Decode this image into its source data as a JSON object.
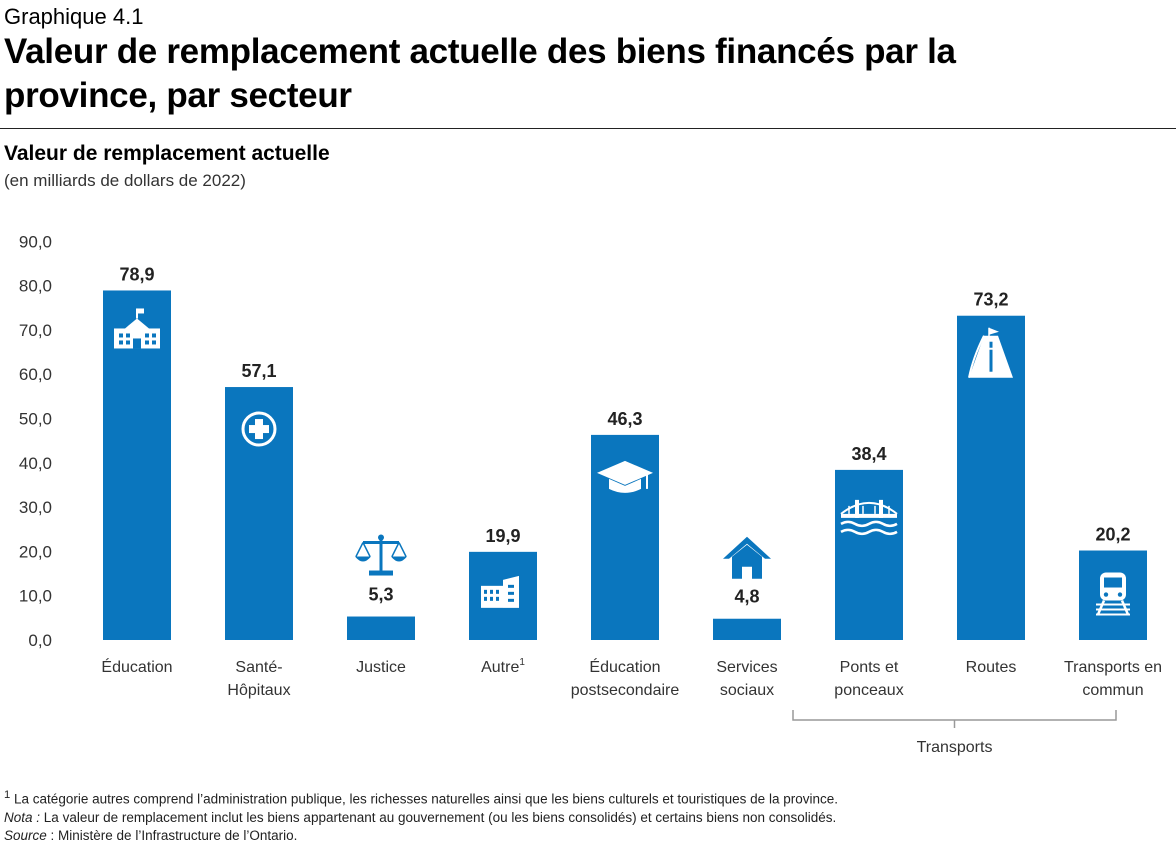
{
  "header": {
    "graph_number": "Graphique 4.1",
    "title": "Valeur de remplacement actuelle des biens financés par la province, par secteur"
  },
  "chart_data": {
    "type": "bar",
    "title": "Valeur de remplacement actuelle",
    "subtitle": "(en milliards de dollars de 2022)",
    "ylabel": "",
    "xlabel": "",
    "ylim": [
      0,
      90
    ],
    "yticks": [
      "90,0",
      "80,0",
      "70,0",
      "60,0",
      "50,0",
      "40,0",
      "30,0",
      "20,0",
      "10,0",
      "0,0"
    ],
    "ytick_values": [
      90,
      80,
      70,
      60,
      50,
      40,
      30,
      20,
      10,
      0
    ],
    "categories": [
      [
        "Éducation"
      ],
      [
        "Santé-",
        "Hôpitaux"
      ],
      [
        "Justice"
      ],
      [
        "Autre"
      ],
      [
        "Éducation",
        "postsecondaire"
      ],
      [
        "Services",
        "sociaux"
      ],
      [
        "Ponts et",
        "ponceaux"
      ],
      [
        "Routes"
      ],
      [
        "Transports en",
        "commun"
      ]
    ],
    "superscript_on_category_3": "1",
    "values": [
      78.9,
      57.1,
      5.3,
      19.9,
      46.3,
      4.8,
      38.4,
      73.2,
      20.2
    ],
    "value_labels": [
      "78,9",
      "57,1",
      "5,3",
      "19,9",
      "46,3",
      "4,8",
      "38,4",
      "73,2",
      "20,2"
    ],
    "icons": [
      "school-icon",
      "health-cross-icon",
      "scales-icon",
      "buildings-icon",
      "graduation-cap-icon",
      "house-icon",
      "bridge-icon",
      "road-icon",
      "train-icon"
    ],
    "group_bracket": {
      "label": "Transports",
      "from_index": 6,
      "to_index": 8
    },
    "bar_color": "#0a76be",
    "grid": false
  },
  "notes": {
    "footnote_mark": "1",
    "footnote": "La catégorie autres comprend l’administration publique, les richesses naturelles ainsi que les biens culturels et touristiques de la province.",
    "nota_label": "Nota :",
    "nota": "La valeur de remplacement inclut les biens appartenant au gouvernement (ou les biens consolidés) et certains biens non consolidés.",
    "source_label": "Source",
    "source": " : Ministère de l’Infrastructure de l’Ontario."
  }
}
